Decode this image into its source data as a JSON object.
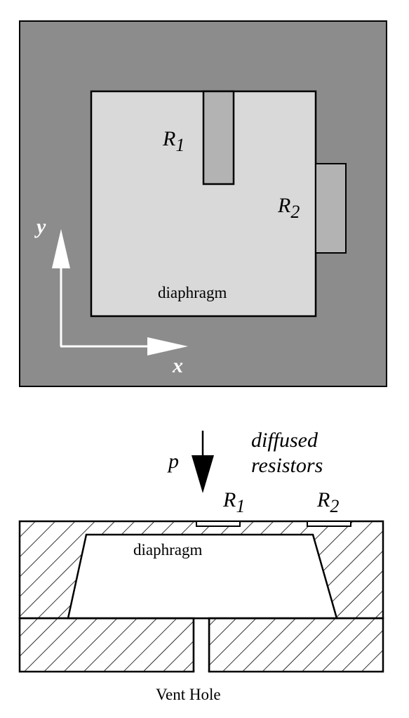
{
  "top_view": {
    "diaphragm_label": "diaphragm",
    "r1": {
      "letter": "R",
      "subscript": "1"
    },
    "r2": {
      "letter": "R",
      "subscript": "2"
    },
    "axis_y": "y",
    "axis_x": "x"
  },
  "cross_section": {
    "pressure_label": "p",
    "resistors_label_line1": "diffused",
    "resistors_label_line2": "resistors",
    "r1": {
      "letter": "R",
      "subscript": "1"
    },
    "r2": {
      "letter": "R",
      "subscript": "2"
    },
    "diaphragm_label": "diaphragm",
    "vent_label": "Vent Hole"
  },
  "colors": {
    "frame_fill": "#8c8c8c",
    "diaphragm_fill": "#d9d9d9",
    "resistor_fill": "#b3b3b3",
    "line": "#000000",
    "axis": "#ffffff"
  }
}
